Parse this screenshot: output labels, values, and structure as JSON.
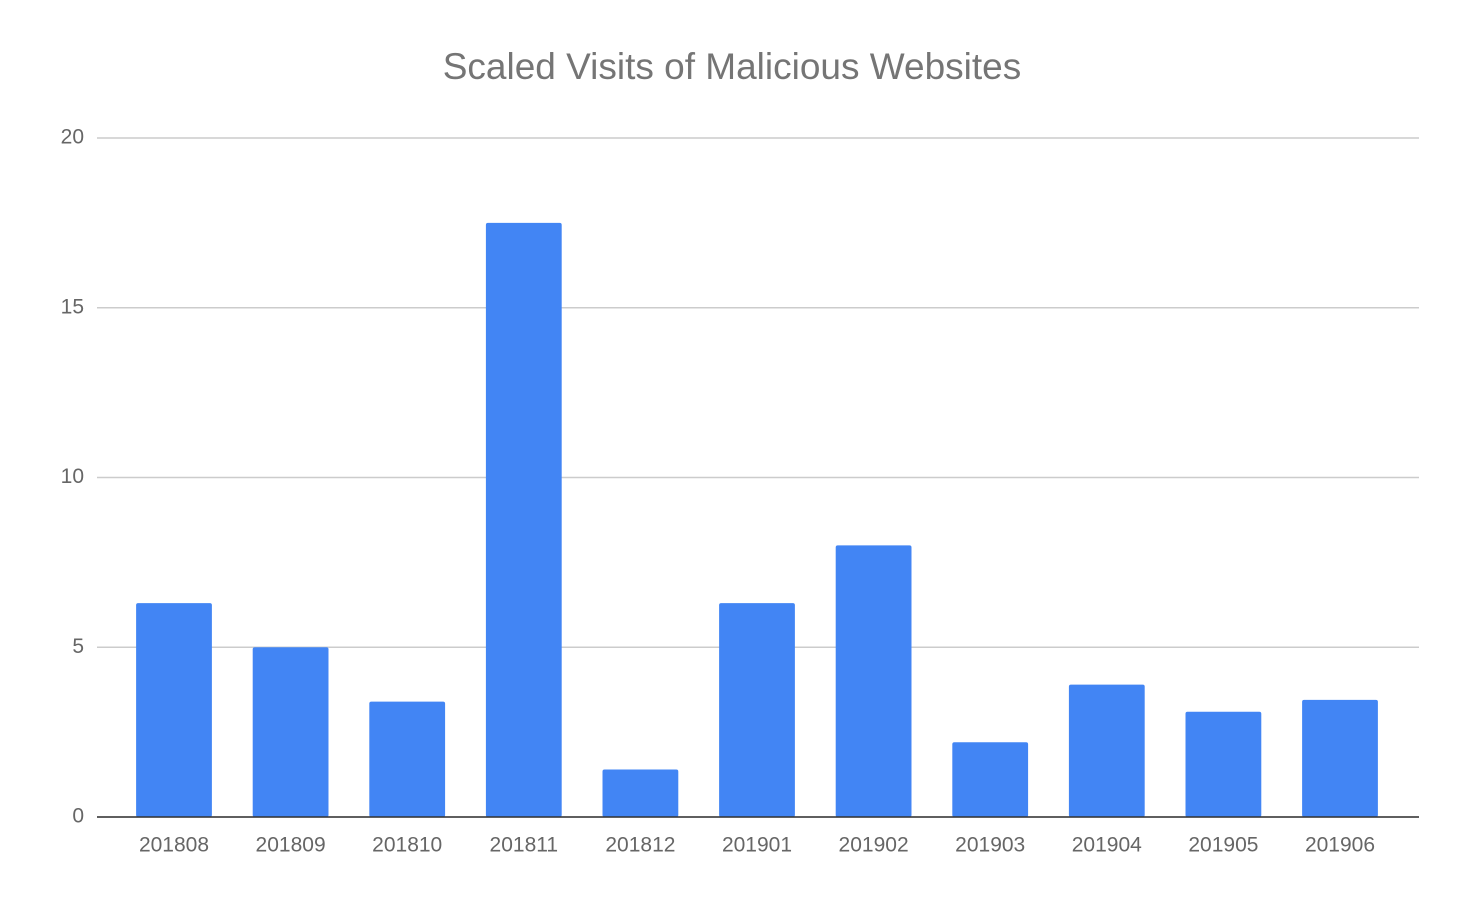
{
  "chart_data": {
    "type": "bar",
    "title": "Scaled Visits of Malicious Websites",
    "categories": [
      "201808",
      "201809",
      "201810",
      "201811",
      "201812",
      "201901",
      "201902",
      "201903",
      "201904",
      "201905",
      "201906"
    ],
    "values": [
      6.3,
      5.0,
      3.4,
      17.5,
      1.4,
      6.3,
      8.0,
      2.2,
      3.9,
      3.1,
      3.45
    ],
    "color": "#4285f4",
    "ylim": [
      0,
      20
    ],
    "yticks": [
      0,
      5,
      10,
      15,
      20
    ],
    "grid": true
  }
}
